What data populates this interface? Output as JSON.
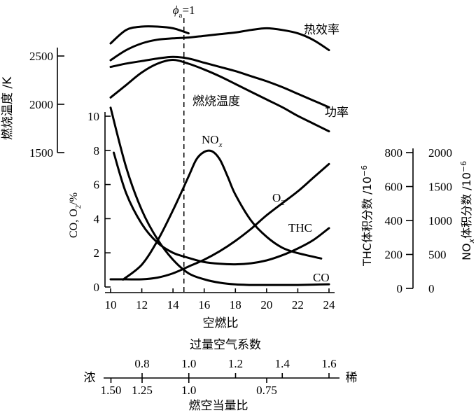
{
  "chart_data": {
    "type": "line",
    "title": "",
    "x": {
      "label": "空燃比",
      "range": [
        10,
        24
      ],
      "ticks": [
        "10",
        "12",
        "14",
        "16",
        "18",
        "20",
        "22",
        "24"
      ]
    },
    "stoich_marker": {
      "label_prefix": "ϕ",
      "label_sub": "a",
      "label_suffix": "=1",
      "x": 14.7
    },
    "axes": {
      "temperature": {
        "label": "燃烧温度 /K",
        "range": [
          1500,
          2500
        ],
        "ticks": [
          "1500",
          "2000",
          "2500"
        ]
      },
      "co_o2": {
        "label_pre": "CO, O",
        "label_sub": "2",
        "label_post": "/%",
        "range": [
          0,
          10
        ],
        "ticks": [
          "0",
          "2",
          "4",
          "6",
          "8",
          "10"
        ]
      },
      "thc": {
        "label_pre": "THC体积分数 /10",
        "label_sup": "−6",
        "range": [
          0,
          800
        ],
        "ticks": [
          "0",
          "200",
          "400",
          "600",
          "800"
        ]
      },
      "nox": {
        "label_pre": "NO",
        "label_sub": "x",
        "label_mid": "体积分数 /10",
        "label_sup": "−6",
        "range": [
          0,
          2000
        ],
        "ticks": [
          "0",
          "500",
          "1000",
          "1500",
          "2000"
        ]
      }
    },
    "series": [
      {
        "name": "热效率",
        "axis": "relative",
        "x": [
          10,
          11,
          12,
          13,
          14,
          15,
          16,
          17,
          18,
          19,
          20,
          21,
          22,
          23,
          24
        ],
        "y": [
          0.6,
          0.66,
          0.7,
          0.722,
          0.73,
          0.735,
          0.745,
          0.755,
          0.765,
          0.78,
          0.79,
          0.78,
          0.76,
          0.72,
          0.66
        ]
      },
      {
        "name": "功率",
        "axis": "relative",
        "x": [
          10,
          11,
          12,
          13,
          14,
          15,
          16,
          17,
          18,
          19,
          20,
          21,
          22,
          23,
          24
        ],
        "y": [
          0.56,
          0.58,
          0.595,
          0.61,
          0.62,
          0.61,
          0.585,
          0.56,
          0.535,
          0.505,
          0.475,
          0.44,
          0.4,
          0.36,
          0.32
        ]
      },
      {
        "name": "燃烧温度",
        "axis": "temperature",
        "x": [
          10,
          11,
          12,
          13,
          14,
          15,
          16,
          17,
          18,
          19,
          20,
          21,
          22,
          23,
          24
        ],
        "y": [
          2070,
          2200,
          2330,
          2420,
          2460,
          2420,
          2360,
          2290,
          2210,
          2130,
          2050,
          1970,
          1880,
          1800,
          1720
        ]
      },
      {
        "name": "热效率_top",
        "axis": "relative",
        "x": [
          10,
          11,
          12,
          13,
          14,
          15
        ],
        "y": [
          0.7,
          0.78,
          0.8,
          0.8,
          0.79,
          0.76
        ]
      },
      {
        "name": "CO",
        "axis": "co_o2",
        "x": [
          10,
          11,
          12,
          13,
          14,
          15,
          16,
          17,
          18,
          19,
          20,
          21,
          22,
          23,
          24
        ],
        "y": [
          10.5,
          7.0,
          4.5,
          2.8,
          1.6,
          0.8,
          0.45,
          0.25,
          0.15,
          0.12,
          0.12,
          0.12,
          0.12,
          0.14,
          0.16
        ]
      },
      {
        "name": "O₂",
        "axis": "co_o2",
        "x": [
          10,
          11,
          12,
          13,
          14,
          15,
          16,
          17,
          18,
          19,
          20,
          21,
          22,
          23,
          24
        ],
        "y": [
          0.45,
          0.45,
          0.45,
          0.55,
          0.8,
          1.2,
          1.6,
          2.1,
          2.7,
          3.4,
          4.2,
          4.9,
          5.6,
          6.4,
          7.2
        ]
      },
      {
        "name": "THC",
        "axis": "thc",
        "x": [
          10.2,
          11,
          12,
          13,
          14,
          15,
          16,
          17,
          18,
          19,
          20,
          21,
          22,
          23,
          24
        ],
        "y": [
          800,
          560,
          380,
          270,
          210,
          180,
          155,
          145,
          142,
          148,
          165,
          195,
          235,
          285,
          355
        ]
      },
      {
        "name": "NOₓ",
        "axis": "nox",
        "x": [
          10.8,
          12,
          13,
          14,
          15,
          15.5,
          16,
          16.5,
          17,
          17.5,
          18,
          19,
          20,
          21,
          22,
          23.5
        ],
        "y": [
          130,
          350,
          700,
          1150,
          1650,
          1900,
          2010,
          2020,
          1900,
          1650,
          1380,
          1000,
          760,
          600,
          520,
          440
        ]
      }
    ],
    "curve_labels": [
      {
        "text": "热效率",
        "series": "热效率"
      },
      {
        "text": "燃烧温度",
        "series": "燃烧温度"
      },
      {
        "text": "功率",
        "series": "功率"
      },
      {
        "text_main": "NO",
        "text_sub": "x",
        "series": "NOₓ"
      },
      {
        "text_main": "O",
        "text_sub": "2",
        "series": "O₂"
      },
      {
        "text": "THC",
        "series": "THC"
      },
      {
        "text": "CO",
        "series": "CO"
      }
    ],
    "secondary_scales": [
      {
        "label": "过量空气系数",
        "end_left": "浓",
        "end_right": "稀",
        "ticks": [
          "0.8",
          "1.0",
          "1.2",
          "1.4",
          "1.6"
        ],
        "values": [
          0.8,
          1.0,
          1.2,
          1.4,
          1.6
        ]
      },
      {
        "label": "燃空当量比",
        "ticks": [
          "1.50",
          "1.25",
          "1.0",
          "0.75"
        ],
        "values": [
          1.5,
          1.25,
          1.0,
          0.75
        ]
      }
    ]
  }
}
